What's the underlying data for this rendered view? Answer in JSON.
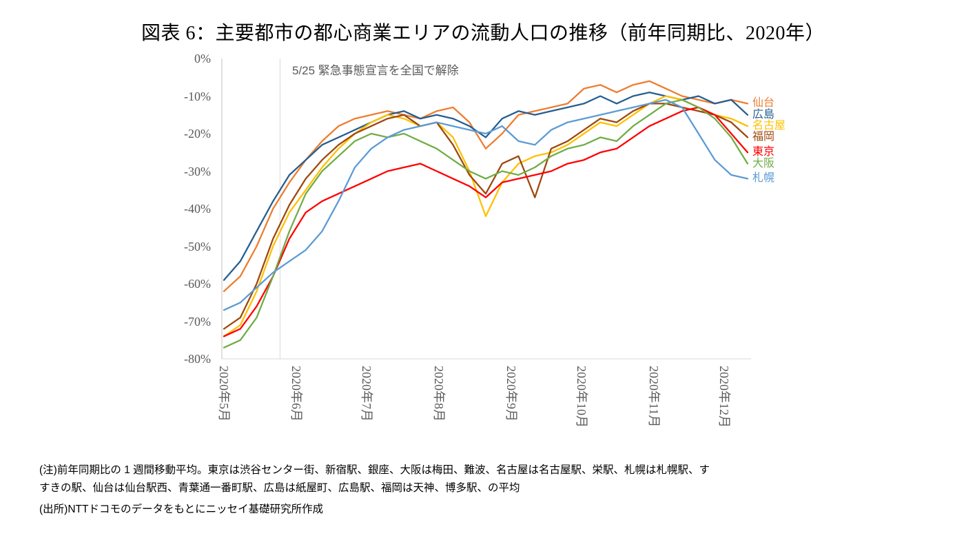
{
  "title": "図表 6：主要都市の都心商業エリアの流動人口の推移（前年同期比、2020年）",
  "annotation": {
    "text": "5/25 緊急事態宣言を全国で解除",
    "day": 24
  },
  "notes": {
    "line1": "(注)前年同期比の 1 週間移動平均。東京は渋谷センター街、新宿駅、銀座、大阪は梅田、難波、名古屋は名古屋駅、栄駅、札幌は札幌駅、す",
    "line2": "すきの駅、仙台は仙台駅西、青葉通一番町駅、広島は紙屋町、広島駅、福岡は天神、博多駅、の平均",
    "line3": "(出所)NTTドコモのデータをもとにニッセイ基礎研究所作成"
  },
  "chart_data": {
    "type": "line",
    "title": "主要都市の都心商業エリアの流動人口の推移（前年同期比、2020年）",
    "x_labels": [
      "2020年5月",
      "2020年6月",
      "2020年7月",
      "2020年8月",
      "2020年9月",
      "2020年10月",
      "2020年11月",
      "2020年12月"
    ],
    "month_tick_days": [
      0,
      31,
      61,
      92,
      123,
      153,
      184,
      214
    ],
    "point_interval_days": 7,
    "y_ticks": [
      "0%",
      "-10%",
      "-20%",
      "-30%",
      "-40%",
      "-50%",
      "-60%",
      "-70%",
      "-80%"
    ],
    "ylim": [
      -80,
      0
    ],
    "grid": "off",
    "legend_position": "right-of-line-ends",
    "axis_color": "#BFBFBF",
    "gridline_color": "#D9D9D9",
    "series": [
      {
        "id": "sendai",
        "name": "仙台",
        "color": "#ED7D31",
        "values": [
          -62,
          -58,
          -50,
          -40,
          -33,
          -27,
          -22,
          -18,
          -16,
          -15,
          -14,
          -15,
          -16,
          -14,
          -13,
          -17,
          -24,
          -20,
          -15,
          -14,
          -13,
          -12,
          -8,
          -7,
          -9,
          -7,
          -6,
          -8,
          -10,
          -11,
          -12,
          -11,
          -12
        ]
      },
      {
        "id": "hiroshima",
        "name": "広島",
        "color": "#255E91",
        "values": [
          -59,
          -54,
          -46,
          -38,
          -31,
          -27,
          -23,
          -21,
          -19,
          -17,
          -15,
          -14,
          -16,
          -15,
          -16,
          -18,
          -21,
          -16,
          -14,
          -15,
          -14,
          -13,
          -12,
          -10,
          -12,
          -10,
          -9,
          -10,
          -11,
          -10,
          -12,
          -11,
          -15
        ]
      },
      {
        "id": "nagoya",
        "name": "名古屋",
        "color": "#FFC000",
        "values": [
          -74,
          -71,
          -62,
          -50,
          -41,
          -35,
          -29,
          -24,
          -20,
          -17,
          -15,
          -16,
          -18,
          -17,
          -21,
          -30,
          -42,
          -33,
          -28,
          -26,
          -25,
          -23,
          -20,
          -17,
          -18,
          -15,
          -12,
          -10,
          -11,
          -13,
          -15,
          -16,
          -18
        ]
      },
      {
        "id": "fukuoka",
        "name": "福岡",
        "color": "#9E480E",
        "values": [
          -72,
          -69,
          -60,
          -48,
          -39,
          -32,
          -27,
          -23,
          -20,
          -18,
          -16,
          -15,
          -18,
          -17,
          -23,
          -31,
          -36,
          -28,
          -26,
          -37,
          -24,
          -22,
          -19,
          -16,
          -17,
          -14,
          -12,
          -12,
          -13,
          -14,
          -15,
          -17,
          -21
        ]
      },
      {
        "id": "tokyo",
        "name": "東京",
        "color": "#FF0000",
        "values": [
          -74,
          -72,
          -66,
          -58,
          -48,
          -41,
          -38,
          -36,
          -34,
          -32,
          -30,
          -29,
          -28,
          -30,
          -32,
          -34,
          -37,
          -33,
          -32,
          -31,
          -30,
          -28,
          -27,
          -25,
          -24,
          -21,
          -18,
          -16,
          -14,
          -13,
          -15,
          -20,
          -25
        ]
      },
      {
        "id": "osaka",
        "name": "大阪",
        "color": "#70AD47",
        "values": [
          -77,
          -75,
          -69,
          -58,
          -46,
          -36,
          -30,
          -26,
          -22,
          -20,
          -21,
          -20,
          -22,
          -24,
          -27,
          -30,
          -32,
          -30,
          -31,
          -29,
          -26,
          -24,
          -23,
          -21,
          -22,
          -18,
          -15,
          -12,
          -11,
          -13,
          -16,
          -21,
          -28
        ]
      },
      {
        "id": "sapporo",
        "name": "札幌",
        "color": "#5B9BD5",
        "values": [
          -67,
          -65,
          -61,
          -57,
          -54,
          -51,
          -46,
          -38,
          -29,
          -24,
          -21,
          -19,
          -18,
          -17,
          -18,
          -19,
          -20,
          -18,
          -22,
          -23,
          -19,
          -17,
          -16,
          -15,
          -14,
          -13,
          -12,
          -11,
          -13,
          -20,
          -27,
          -31,
          -32
        ]
      }
    ]
  }
}
